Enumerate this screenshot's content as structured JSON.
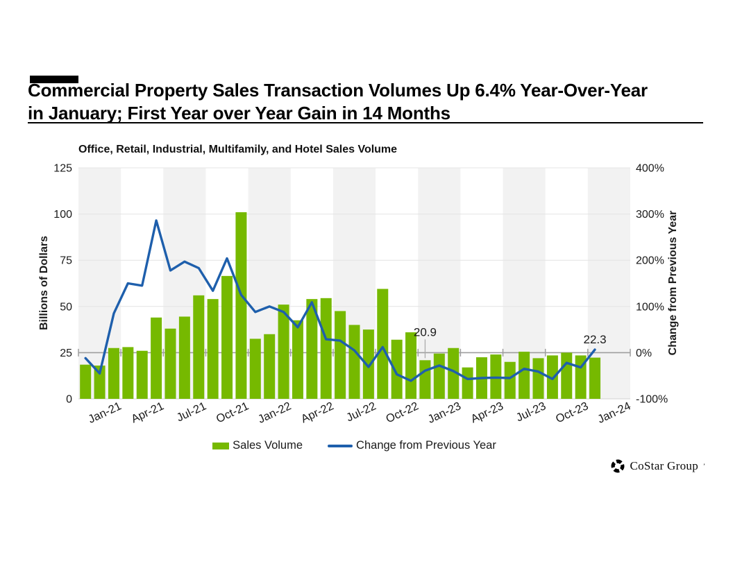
{
  "page": {
    "title_line1": "Commercial Property Sales Transaction Volumes Up 6.4% Year-Over-Year",
    "title_line2": "in January; First Year over Year Gain in 14 Months"
  },
  "chart_data": {
    "type": "bar",
    "title": "Office, Retail, Industrial, Multifamily, and Hotel Sales Volume",
    "categories": [
      "Jan-21",
      "Feb-21",
      "Mar-21",
      "Apr-21",
      "May-21",
      "Jun-21",
      "Jul-21",
      "Aug-21",
      "Sep-21",
      "Oct-21",
      "Nov-21",
      "Dec-21",
      "Jan-22",
      "Feb-22",
      "Mar-22",
      "Apr-22",
      "May-22",
      "Jun-22",
      "Jul-22",
      "Aug-22",
      "Sep-22",
      "Oct-22",
      "Nov-22",
      "Dec-22",
      "Jan-23",
      "Feb-23",
      "Mar-23",
      "Apr-23",
      "May-23",
      "Jun-23",
      "Jul-23",
      "Aug-23",
      "Sep-23",
      "Oct-23",
      "Nov-23",
      "Dec-23",
      "Jan-24"
    ],
    "x_tick_labels": [
      "Jan-21",
      "Apr-21",
      "Jul-21",
      "Oct-21",
      "Jan-22",
      "Apr-22",
      "Jul-22",
      "Oct-22",
      "Jan-23",
      "Apr-23",
      "Jul-23",
      "Oct-23",
      "Jan-24"
    ],
    "series": [
      {
        "name": "Sales Volume",
        "type": "bar",
        "axis": "left",
        "color": "#76b900",
        "values": [
          18.5,
          18,
          27.5,
          28,
          26,
          44,
          38,
          44.5,
          56,
          54,
          66.5,
          101,
          32.5,
          35,
          51,
          42.5,
          54,
          54.5,
          47.5,
          40,
          37.5,
          59.5,
          32,
          36,
          20.9,
          24.5,
          27.5,
          17,
          22.5,
          24,
          20,
          25.5,
          22,
          23.5,
          25,
          23.5,
          22.3
        ]
      },
      {
        "name": "Change from Previous Year",
        "type": "line",
        "axis": "right",
        "color": "#1e5fac",
        "values_pct": [
          -12,
          -45,
          85,
          150,
          145,
          286,
          178,
          197,
          183,
          134,
          204,
          125,
          88,
          100,
          88,
          55,
          109,
          29,
          26,
          5,
          -31,
          12,
          -47,
          -61,
          -39,
          -28,
          -40,
          -57,
          -55,
          -54,
          -55,
          -35,
          -41,
          -57,
          -22,
          -32,
          6.4
        ]
      }
    ],
    "left_axis": {
      "label": "Billions of Dollars",
      "min": 0,
      "max": 125,
      "ticks": [
        0,
        25,
        50,
        75,
        100,
        125
      ]
    },
    "right_axis": {
      "label": "Change from Previous Year",
      "min": -100,
      "max": 400,
      "ticks": [
        "-100%",
        "0%",
        "100%",
        "200%",
        "300%",
        "400%"
      ]
    },
    "annotations": [
      {
        "month": "Jan-23",
        "text": "20.9",
        "pointer": true
      },
      {
        "month": "Jan-24",
        "text": "22.3",
        "pointer": false
      }
    ],
    "x_span_months": 39,
    "background": {
      "stripe_color": "#f2f2f2",
      "stripe_months": 3
    },
    "grid_color": "#e4e4e4",
    "zero_line_color": "#9e9e9e",
    "legend_position": "bottom"
  },
  "legend": {
    "items": [
      {
        "label": "Sales Volume",
        "swatch": "bar",
        "color": "#76b900"
      },
      {
        "label": "Change from Previous Year",
        "swatch": "line",
        "color": "#1e5fac"
      }
    ]
  },
  "footer": {
    "logo_text": "CoStar Group",
    "logo_mark": "’",
    "logo_icon": "costar-pinwheel-icon"
  }
}
